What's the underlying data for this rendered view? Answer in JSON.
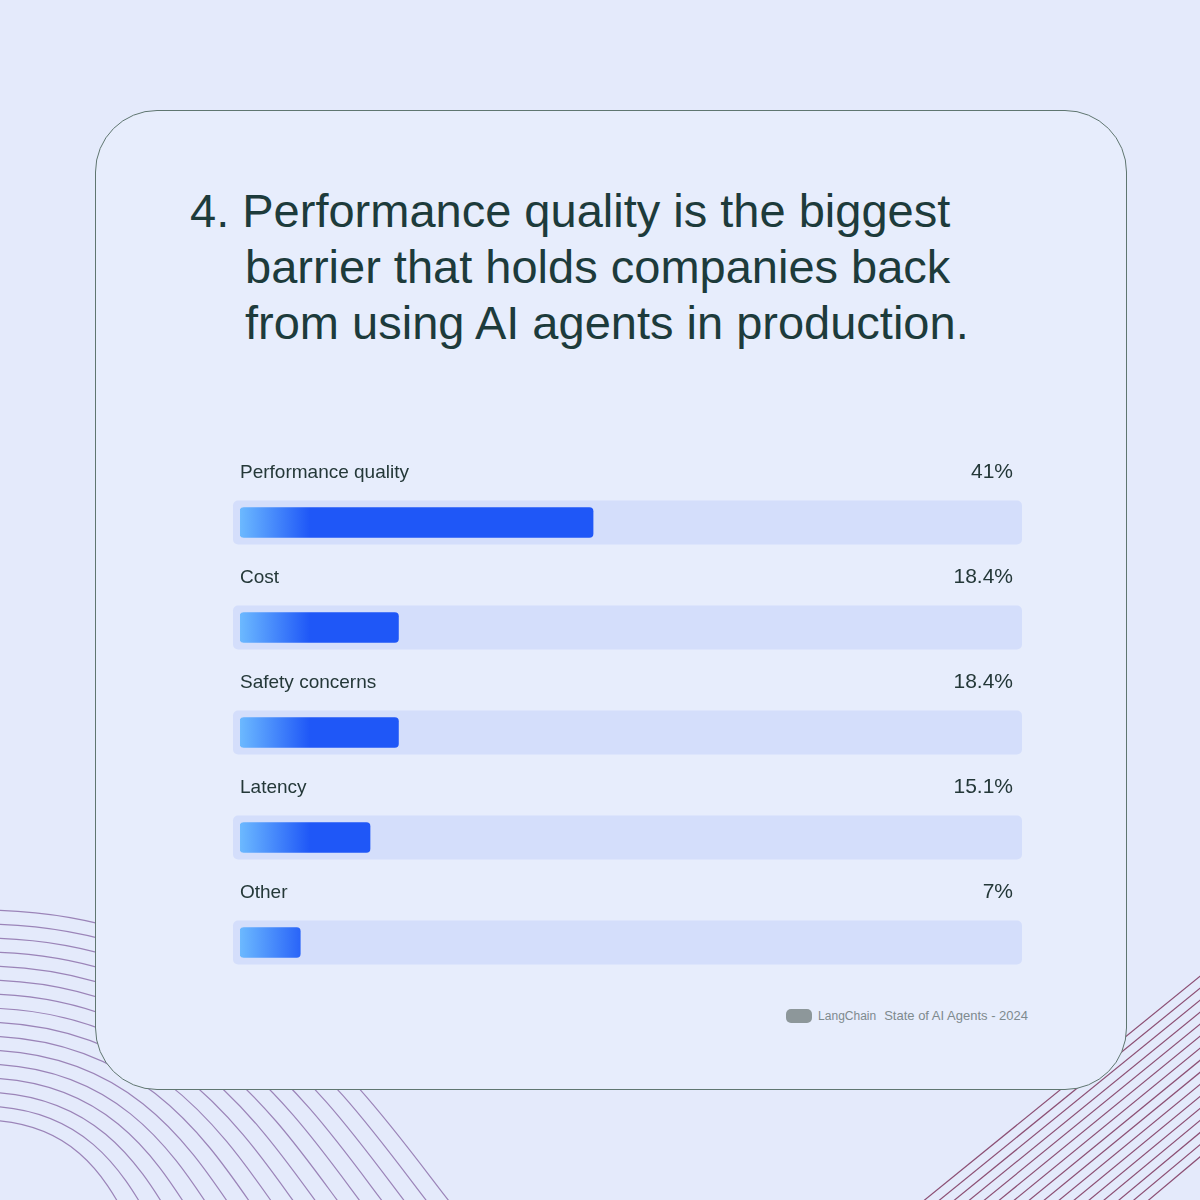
{
  "chart_data": {
    "type": "bar",
    "orientation": "horizontal",
    "title": "4. Performance quality is the biggest barrier that holds companies back from using AI agents in production.",
    "categories": [
      "Performance quality",
      "Cost",
      "Safety concerns",
      "Latency",
      "Other"
    ],
    "values": [
      41,
      18.4,
      18.4,
      15.1,
      7
    ],
    "value_labels": [
      "41%",
      "18.4%",
      "18.4%",
      "15.1%",
      "7%"
    ],
    "color": "#1f57f7",
    "xlim": [
      0,
      90
    ],
    "grid": false,
    "data_labels": true,
    "tick_labels": false
  },
  "footer": {
    "brand": "LangChain",
    "text": "State of AI Agents - 2024"
  }
}
